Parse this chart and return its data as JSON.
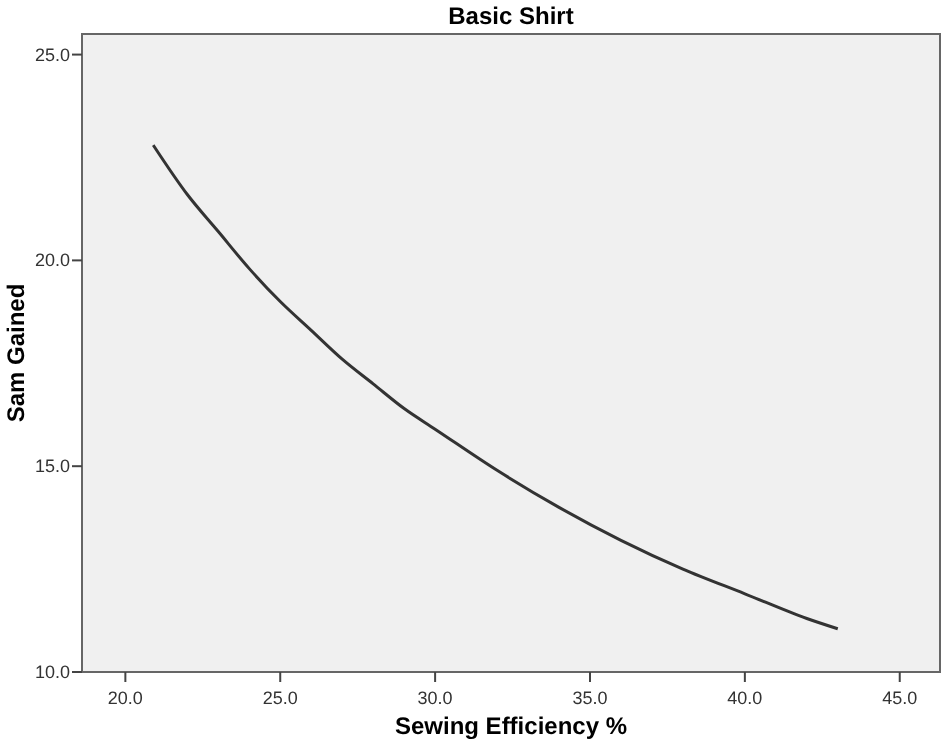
{
  "chart_data": {
    "type": "line",
    "title": "Basic Shirt",
    "xlabel": "Sewing Efficiency %",
    "ylabel": "Sam Gained",
    "x": [
      20.9,
      22,
      23,
      24,
      25,
      26,
      27,
      28,
      29,
      30,
      32,
      34,
      36,
      38,
      40,
      42,
      43
    ],
    "series": [
      {
        "color": "#333333",
        "values": [
          22.8,
          21.6,
          20.7,
          19.8,
          19.0,
          18.3,
          17.6,
          17.0,
          16.4,
          15.9,
          14.9,
          14.0,
          13.2,
          12.5,
          11.9,
          11.3,
          11.05
        ]
      }
    ],
    "xlim": [
      18.6,
      46.3
    ],
    "ylim": [
      10,
      25.5
    ],
    "xticks": [
      {
        "value": 20,
        "label": "20.0"
      },
      {
        "value": 25,
        "label": "25.0"
      },
      {
        "value": 30,
        "label": "30.0"
      },
      {
        "value": 35,
        "label": "35.0"
      },
      {
        "value": 40,
        "label": "40.0"
      },
      {
        "value": 45,
        "label": "45.0"
      }
    ],
    "yticks": [
      {
        "value": 10,
        "label": "10.0"
      },
      {
        "value": 15,
        "label": "15.0"
      },
      {
        "value": 20,
        "label": "20.0"
      },
      {
        "value": 25,
        "label": "25.0"
      }
    ],
    "grid": false,
    "marker": "none",
    "line_style": "solid"
  }
}
